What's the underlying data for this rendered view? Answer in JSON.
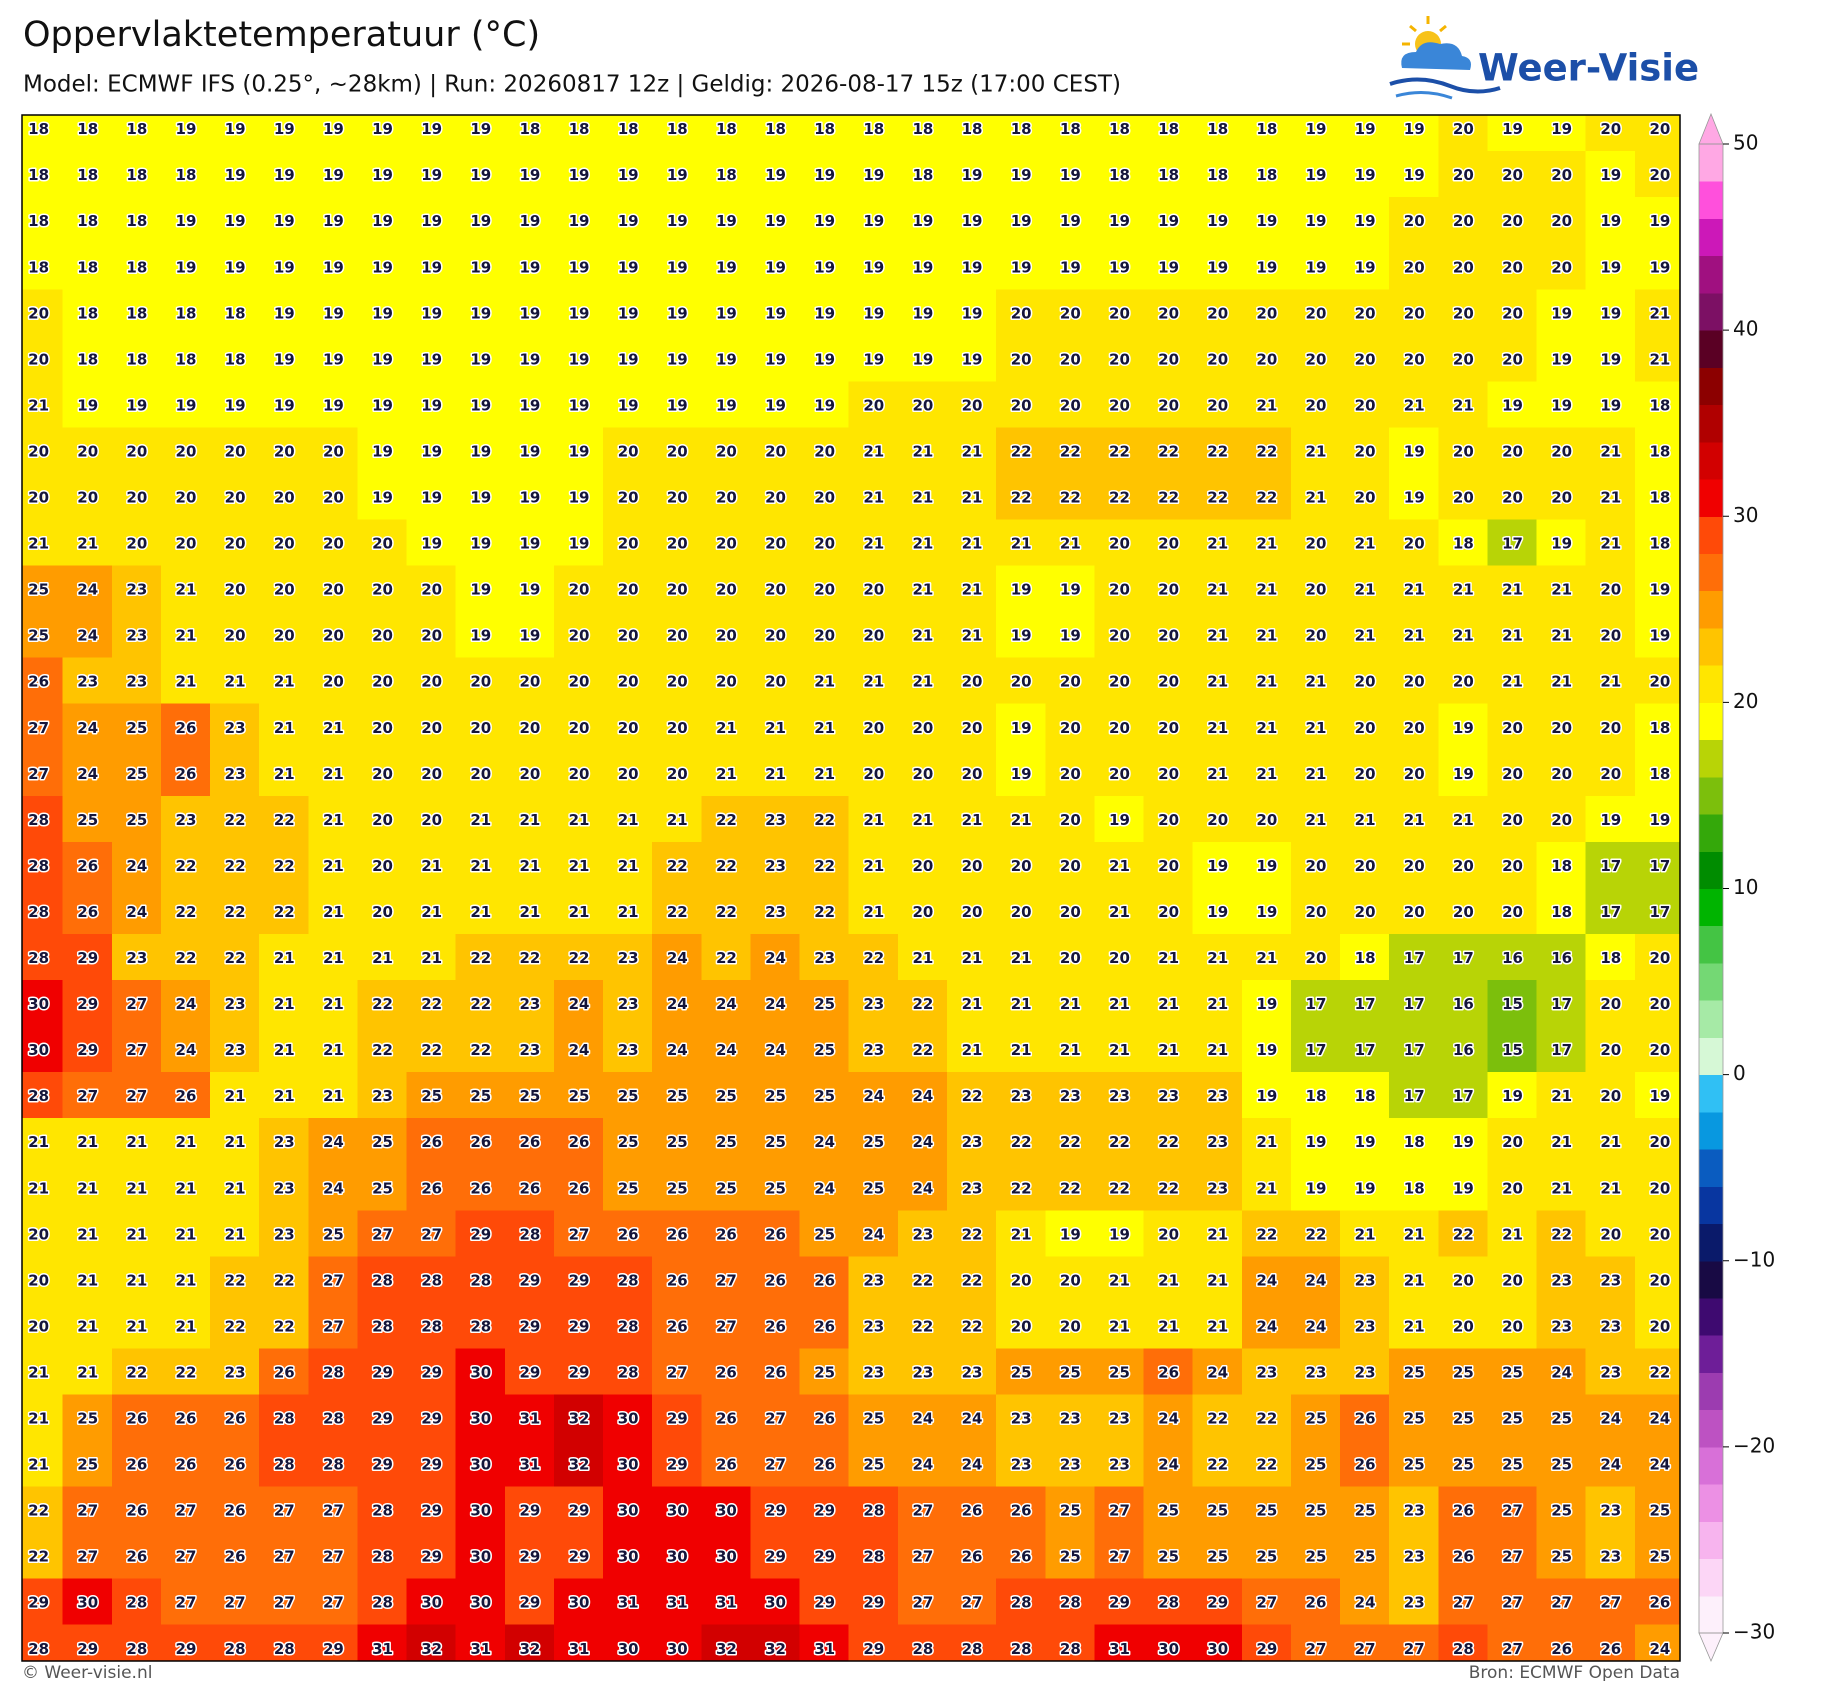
{
  "header": {
    "title": "Oppervlaktetemperatuur (°C)",
    "subtitle": "Model: ECMWF IFS (0.25°, ~28km)  |  Run: 20260817 12z  |  Geldig: 2026-08-17 15z (17:00 CEST)",
    "logo": "Weer-Visie"
  },
  "chart_data": {
    "type": "heatmap",
    "values": [
      [
        18,
        18,
        18,
        19,
        19,
        19,
        19,
        19,
        19,
        19,
        18,
        18,
        18,
        18,
        18,
        18,
        18,
        18,
        18,
        18,
        18,
        18,
        18,
        18,
        18,
        18,
        19,
        19,
        19,
        20,
        19,
        19,
        20,
        20
      ],
      [
        18,
        18,
        18,
        18,
        19,
        19,
        19,
        19,
        19,
        19,
        19,
        19,
        19,
        19,
        18,
        19,
        19,
        19,
        18,
        19,
        19,
        19,
        18,
        18,
        18,
        18,
        19,
        19,
        19,
        20,
        20,
        20,
        19,
        20
      ],
      [
        18,
        18,
        18,
        19,
        19,
        19,
        19,
        19,
        19,
        19,
        19,
        19,
        19,
        19,
        19,
        19,
        19,
        19,
        19,
        19,
        19,
        19,
        19,
        19,
        19,
        19,
        19,
        19,
        20,
        20,
        20,
        20,
        19,
        19
      ],
      [
        18,
        18,
        18,
        19,
        19,
        19,
        19,
        19,
        19,
        19,
        19,
        19,
        19,
        19,
        19,
        19,
        19,
        19,
        19,
        19,
        19,
        19,
        19,
        19,
        19,
        19,
        19,
        19,
        20,
        20,
        20,
        20,
        19,
        19
      ],
      [
        20,
        18,
        18,
        18,
        18,
        19,
        19,
        19,
        19,
        19,
        19,
        19,
        19,
        19,
        19,
        19,
        19,
        19,
        19,
        19,
        20,
        20,
        20,
        20,
        20,
        20,
        20,
        20,
        20,
        20,
        20,
        19,
        19,
        21
      ],
      [
        20,
        18,
        18,
        18,
        18,
        19,
        19,
        19,
        19,
        19,
        19,
        19,
        19,
        19,
        19,
        19,
        19,
        19,
        19,
        19,
        20,
        20,
        20,
        20,
        20,
        20,
        20,
        20,
        20,
        20,
        20,
        19,
        19,
        21
      ],
      [
        21,
        19,
        19,
        19,
        19,
        19,
        19,
        19,
        19,
        19,
        19,
        19,
        19,
        19,
        19,
        19,
        19,
        20,
        20,
        20,
        20,
        20,
        20,
        20,
        20,
        21,
        20,
        20,
        21,
        21,
        19,
        19,
        19,
        18
      ],
      [
        20,
        20,
        20,
        20,
        20,
        20,
        20,
        19,
        19,
        19,
        19,
        19,
        20,
        20,
        20,
        20,
        20,
        21,
        21,
        21,
        22,
        22,
        22,
        22,
        22,
        22,
        21,
        20,
        19,
        20,
        20,
        20,
        21,
        18
      ],
      [
        20,
        20,
        20,
        20,
        20,
        20,
        20,
        19,
        19,
        19,
        19,
        19,
        20,
        20,
        20,
        20,
        20,
        21,
        21,
        21,
        22,
        22,
        22,
        22,
        22,
        22,
        21,
        20,
        19,
        20,
        20,
        20,
        21,
        18
      ],
      [
        21,
        21,
        20,
        20,
        20,
        20,
        20,
        20,
        19,
        19,
        19,
        19,
        20,
        20,
        20,
        20,
        20,
        21,
        21,
        21,
        21,
        21,
        20,
        20,
        21,
        21,
        20,
        21,
        20,
        18,
        17,
        19,
        21,
        18
      ],
      [
        25,
        24,
        23,
        21,
        20,
        20,
        20,
        20,
        20,
        19,
        19,
        20,
        20,
        20,
        20,
        20,
        20,
        20,
        21,
        21,
        19,
        19,
        20,
        20,
        21,
        21,
        20,
        21,
        21,
        21,
        21,
        21,
        20,
        19
      ],
      [
        25,
        24,
        23,
        21,
        20,
        20,
        20,
        20,
        20,
        19,
        19,
        20,
        20,
        20,
        20,
        20,
        20,
        20,
        21,
        21,
        19,
        19,
        20,
        20,
        21,
        21,
        20,
        21,
        21,
        21,
        21,
        21,
        20,
        19
      ],
      [
        26,
        23,
        23,
        21,
        21,
        21,
        20,
        20,
        20,
        20,
        20,
        20,
        20,
        20,
        20,
        20,
        21,
        21,
        21,
        20,
        20,
        20,
        20,
        20,
        21,
        21,
        21,
        20,
        20,
        20,
        21,
        21,
        21,
        20
      ],
      [
        27,
        24,
        25,
        26,
        23,
        21,
        21,
        20,
        20,
        20,
        20,
        20,
        20,
        20,
        21,
        21,
        21,
        20,
        20,
        20,
        19,
        20,
        20,
        20,
        21,
        21,
        21,
        20,
        20,
        19,
        20,
        20,
        20,
        18
      ],
      [
        27,
        24,
        25,
        26,
        23,
        21,
        21,
        20,
        20,
        20,
        20,
        20,
        20,
        20,
        21,
        21,
        21,
        20,
        20,
        20,
        19,
        20,
        20,
        20,
        21,
        21,
        21,
        20,
        20,
        19,
        20,
        20,
        20,
        18
      ],
      [
        28,
        25,
        25,
        23,
        22,
        22,
        21,
        20,
        20,
        21,
        21,
        21,
        21,
        21,
        22,
        23,
        22,
        21,
        21,
        21,
        21,
        20,
        19,
        20,
        20,
        20,
        21,
        21,
        21,
        21,
        20,
        20,
        19,
        19
      ],
      [
        28,
        26,
        24,
        22,
        22,
        22,
        21,
        20,
        21,
        21,
        21,
        21,
        21,
        22,
        22,
        23,
        22,
        21,
        20,
        20,
        20,
        20,
        21,
        20,
        19,
        19,
        20,
        20,
        20,
        20,
        20,
        18,
        17,
        17
      ],
      [
        28,
        26,
        24,
        22,
        22,
        22,
        21,
        20,
        21,
        21,
        21,
        21,
        21,
        22,
        22,
        23,
        22,
        21,
        20,
        20,
        20,
        20,
        21,
        20,
        19,
        19,
        20,
        20,
        20,
        20,
        20,
        18,
        17,
        17
      ],
      [
        28,
        29,
        23,
        22,
        22,
        21,
        21,
        21,
        21,
        22,
        22,
        22,
        23,
        24,
        22,
        24,
        23,
        22,
        21,
        21,
        21,
        20,
        20,
        21,
        21,
        21,
        20,
        18,
        17,
        17,
        16,
        16,
        18,
        20
      ],
      [
        30,
        29,
        27,
        24,
        23,
        21,
        21,
        22,
        22,
        22,
        23,
        24,
        23,
        24,
        24,
        24,
        25,
        23,
        22,
        21,
        21,
        21,
        21,
        21,
        21,
        19,
        17,
        17,
        17,
        16,
        15,
        17,
        20,
        20
      ],
      [
        30,
        29,
        27,
        24,
        23,
        21,
        21,
        22,
        22,
        22,
        23,
        24,
        23,
        24,
        24,
        24,
        25,
        23,
        22,
        21,
        21,
        21,
        21,
        21,
        21,
        19,
        17,
        17,
        17,
        16,
        15,
        17,
        20,
        20
      ],
      [
        28,
        27,
        27,
        26,
        21,
        21,
        21,
        23,
        25,
        25,
        25,
        25,
        25,
        25,
        25,
        25,
        25,
        24,
        24,
        22,
        23,
        23,
        23,
        23,
        23,
        19,
        18,
        18,
        17,
        17,
        19,
        21,
        20,
        19
      ],
      [
        21,
        21,
        21,
        21,
        21,
        23,
        24,
        25,
        26,
        26,
        26,
        26,
        25,
        25,
        25,
        25,
        24,
        25,
        24,
        23,
        22,
        22,
        22,
        22,
        23,
        21,
        19,
        19,
        18,
        19,
        20,
        21,
        21,
        20
      ],
      [
        21,
        21,
        21,
        21,
        21,
        23,
        24,
        25,
        26,
        26,
        26,
        26,
        25,
        25,
        25,
        25,
        24,
        25,
        24,
        23,
        22,
        22,
        22,
        22,
        23,
        21,
        19,
        19,
        18,
        19,
        20,
        21,
        21,
        20
      ],
      [
        20,
        21,
        21,
        21,
        21,
        23,
        25,
        27,
        27,
        29,
        28,
        27,
        26,
        26,
        26,
        26,
        25,
        24,
        23,
        22,
        21,
        19,
        19,
        20,
        21,
        22,
        22,
        21,
        21,
        22,
        21,
        22,
        20,
        20
      ],
      [
        20,
        21,
        21,
        21,
        22,
        22,
        27,
        28,
        28,
        28,
        29,
        29,
        28,
        26,
        27,
        26,
        26,
        23,
        22,
        22,
        20,
        20,
        21,
        21,
        21,
        24,
        24,
        23,
        21,
        20,
        20,
        23,
        23,
        20
      ],
      [
        20,
        21,
        21,
        21,
        22,
        22,
        27,
        28,
        28,
        28,
        29,
        29,
        28,
        26,
        27,
        26,
        26,
        23,
        22,
        22,
        20,
        20,
        21,
        21,
        21,
        24,
        24,
        23,
        21,
        20,
        20,
        23,
        23,
        20
      ],
      [
        21,
        21,
        22,
        22,
        23,
        26,
        28,
        29,
        29,
        30,
        29,
        29,
        28,
        27,
        26,
        26,
        25,
        23,
        23,
        23,
        25,
        25,
        25,
        26,
        24,
        23,
        23,
        23,
        25,
        25,
        25,
        24,
        23,
        22
      ],
      [
        21,
        25,
        26,
        26,
        26,
        28,
        28,
        29,
        29,
        30,
        31,
        32,
        30,
        29,
        26,
        27,
        26,
        25,
        24,
        24,
        23,
        23,
        23,
        24,
        22,
        22,
        25,
        26,
        25,
        25,
        25,
        25,
        24,
        24
      ],
      [
        21,
        25,
        26,
        26,
        26,
        28,
        28,
        29,
        29,
        30,
        31,
        32,
        30,
        29,
        26,
        27,
        26,
        25,
        24,
        24,
        23,
        23,
        23,
        24,
        22,
        22,
        25,
        26,
        25,
        25,
        25,
        25,
        24,
        24
      ],
      [
        22,
        27,
        26,
        27,
        26,
        27,
        27,
        28,
        29,
        30,
        29,
        29,
        30,
        30,
        30,
        29,
        29,
        28,
        27,
        26,
        26,
        25,
        27,
        25,
        25,
        25,
        25,
        25,
        23,
        26,
        27,
        25,
        23,
        25
      ],
      [
        22,
        27,
        26,
        27,
        26,
        27,
        27,
        28,
        29,
        30,
        29,
        29,
        30,
        30,
        30,
        29,
        29,
        28,
        27,
        26,
        26,
        25,
        27,
        25,
        25,
        25,
        25,
        25,
        23,
        26,
        27,
        25,
        23,
        25
      ],
      [
        29,
        30,
        28,
        27,
        27,
        27,
        27,
        28,
        30,
        30,
        29,
        30,
        31,
        31,
        31,
        30,
        29,
        29,
        27,
        27,
        28,
        28,
        29,
        28,
        29,
        27,
        26,
        24,
        23,
        27,
        27,
        27,
        27,
        26
      ],
      [
        28,
        29,
        28,
        29,
        28,
        28,
        29,
        31,
        32,
        31,
        32,
        31,
        30,
        30,
        32,
        32,
        31,
        29,
        28,
        28,
        28,
        28,
        31,
        30,
        30,
        29,
        27,
        27,
        27,
        28,
        27,
        26,
        26,
        24
      ]
    ],
    "colorbar": {
      "lim": [
        -30,
        50
      ],
      "ticks": [
        {
          "value": -30,
          "label": "−30"
        },
        {
          "value": -20,
          "label": "−20"
        },
        {
          "value": -10,
          "label": "−10"
        },
        0,
        10,
        20,
        30,
        40,
        50
      ],
      "colors": [
        "#fdf0fb",
        "#fcd6f6",
        "#f7b4ee",
        "#ec90e4",
        "#d870d8",
        "#bd52c2",
        "#9c3cb0",
        "#6e1e98",
        "#3e0a70",
        "#180a44",
        "#0a1a6a",
        "#0836a0",
        "#0a5cc0",
        "#0898e0",
        "#30c0f4",
        "#d6f8d6",
        "#a6eaa6",
        "#74d874",
        "#44c444",
        "#00b400",
        "#008c00",
        "#34a80a",
        "#7cbf0c",
        "#b8d406",
        "#ffff00",
        "#ffe600",
        "#ffc400",
        "#ff9c00",
        "#ff6e08",
        "#ff4a08",
        "#f00000",
        "#d20000",
        "#b00000",
        "#8c0000",
        "#5a0024",
        "#7c1064",
        "#a01080",
        "#cc18b8",
        "#ff50dc",
        "#ffa8e4"
      ]
    }
  },
  "footer": {
    "left": "© Weer-visie.nl",
    "right": "Bron: ECMWF Open Data"
  }
}
